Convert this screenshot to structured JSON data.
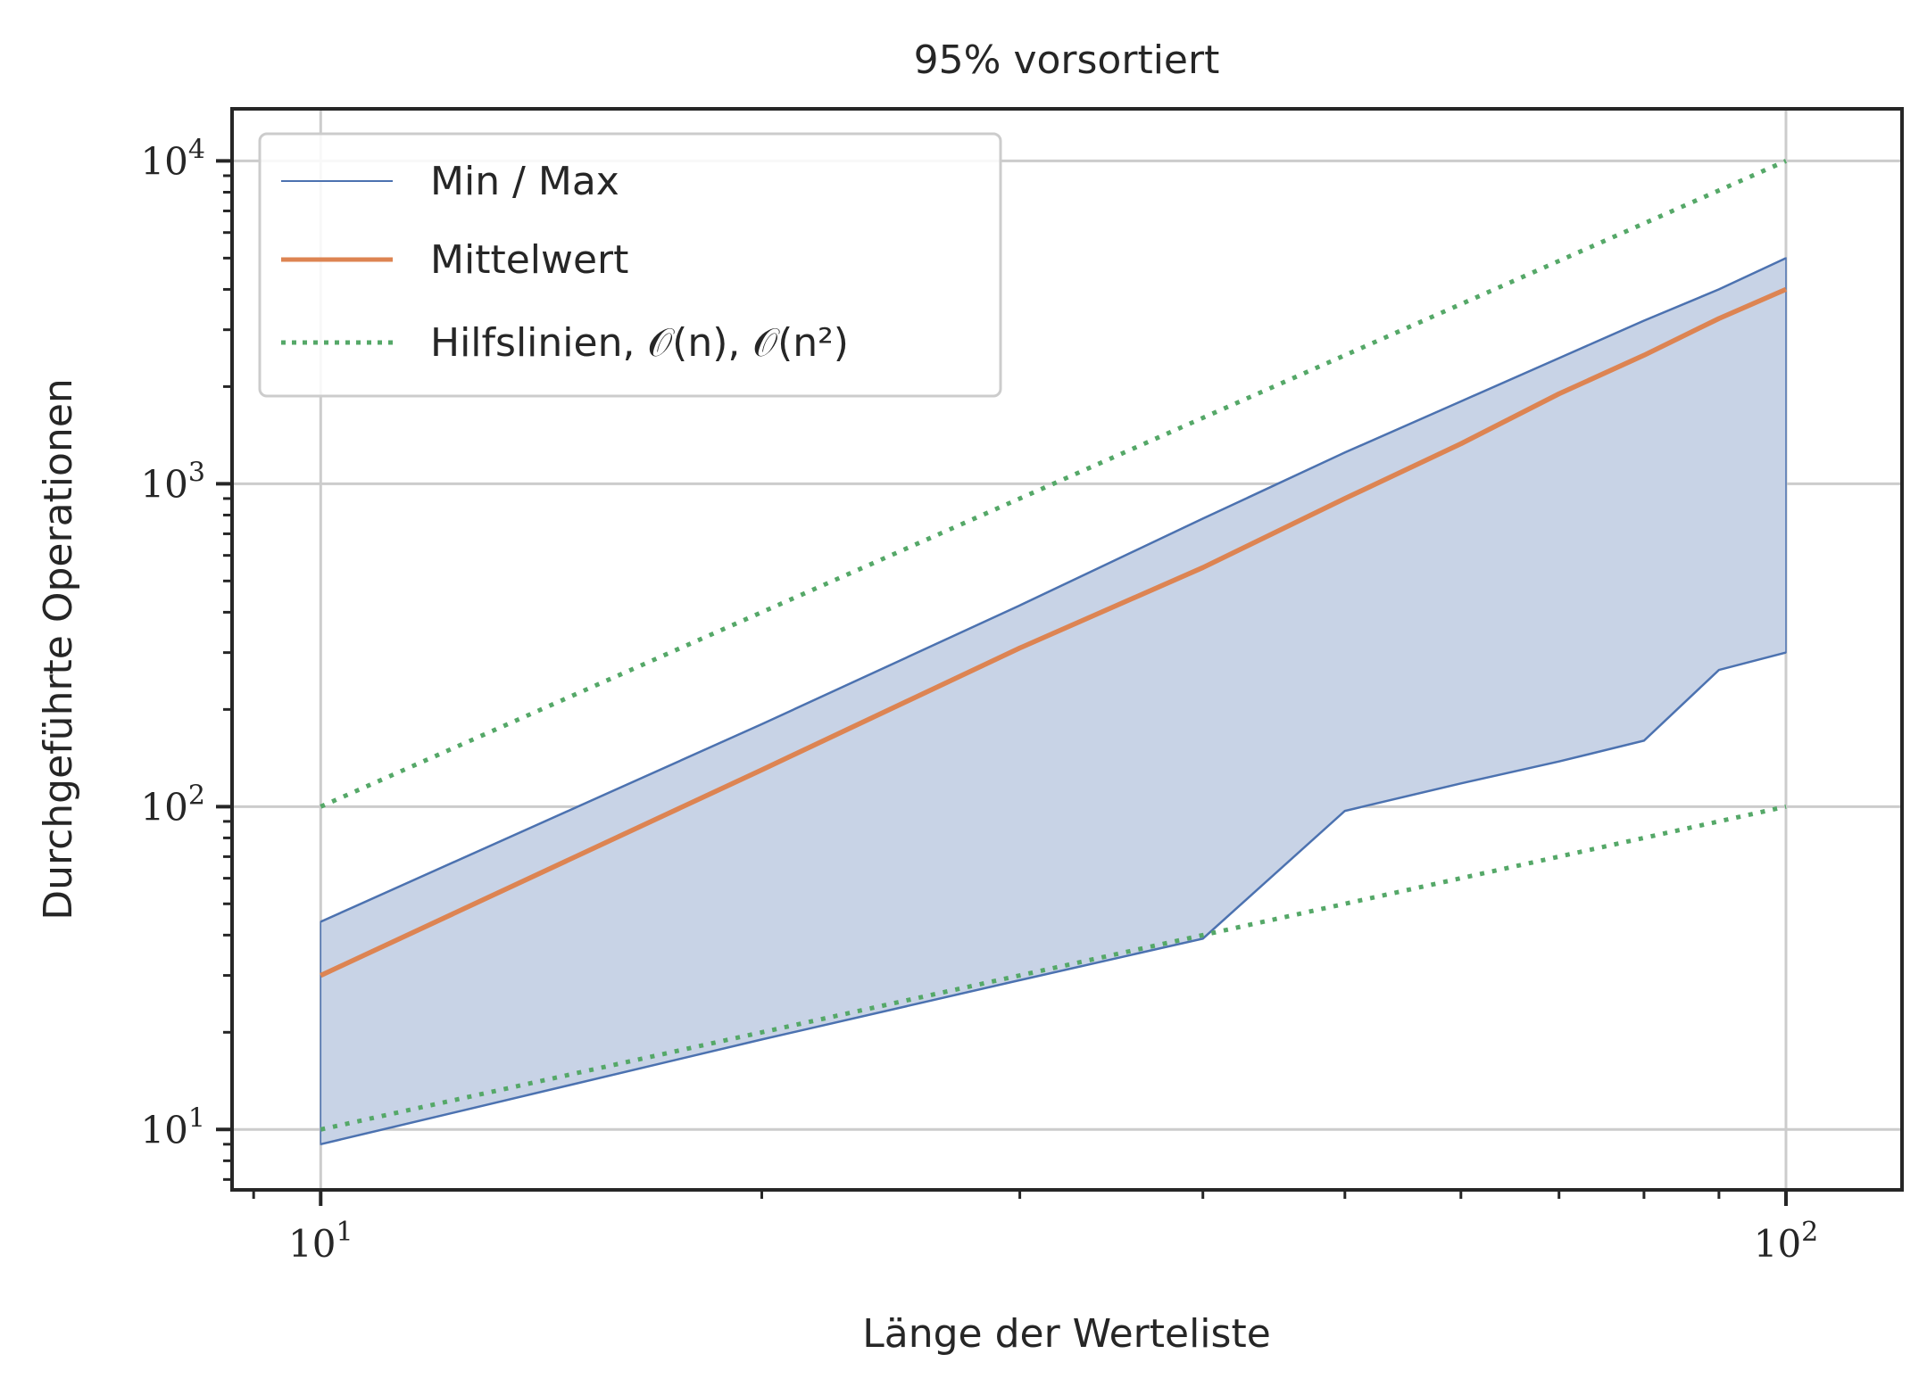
{
  "chart_data": {
    "type": "line",
    "title": "95% vorsortiert",
    "xlabel": "Länge der Werteliste",
    "ylabel": "Durchgeführte Operationen",
    "x_scale": "log",
    "y_scale": "log",
    "xlim": [
      8.7,
      120
    ],
    "ylim": [
      6.5,
      14500
    ],
    "grid": true,
    "x_ticks": [
      {
        "value": 10,
        "base": "10",
        "exp": "1"
      },
      {
        "value": 100,
        "base": "10",
        "exp": "2"
      }
    ],
    "y_ticks": [
      {
        "value": 10,
        "base": "10",
        "exp": "1"
      },
      {
        "value": 100,
        "base": "10",
        "exp": "2"
      },
      {
        "value": 1000,
        "base": "10",
        "exp": "3"
      },
      {
        "value": 10000,
        "base": "10",
        "exp": "4"
      }
    ],
    "legend": {
      "placement": "top-left",
      "entries": [
        {
          "label": "Min / Max",
          "style": "thin-line",
          "color": "#4c72b0"
        },
        {
          "label": "Mittelwert",
          "style": "line",
          "color": "#dd8452"
        },
        {
          "label": "Hilfslinien, 𝒪(n), 𝒪(n²)",
          "style": "dotted",
          "color": "#55a868"
        }
      ]
    },
    "colors": {
      "band": "#4c72b0",
      "band_fill": "#c8d3e6",
      "mean": "#dd8452",
      "guides": "#55a868"
    },
    "x": [
      10,
      20,
      30,
      40,
      50,
      60,
      70,
      80,
      90,
      100
    ],
    "series": [
      {
        "name": "Max",
        "values": [
          44,
          180,
          420,
          780,
          1250,
          1800,
          2450,
          3200,
          4000,
          5000
        ]
      },
      {
        "name": "Min",
        "values": [
          9,
          19,
          29,
          39,
          97,
          118,
          138,
          160,
          265,
          300
        ]
      },
      {
        "name": "Mittelwert",
        "values": [
          30,
          130,
          310,
          550,
          900,
          1330,
          1900,
          2500,
          3250,
          4000
        ]
      }
    ],
    "guide_lines": [
      {
        "name": "O(n)",
        "x": [
          10,
          100
        ],
        "values": [
          10,
          100
        ]
      },
      {
        "name": "O(n^2)",
        "x": [
          10,
          100
        ],
        "values": [
          100,
          10000
        ]
      }
    ]
  }
}
